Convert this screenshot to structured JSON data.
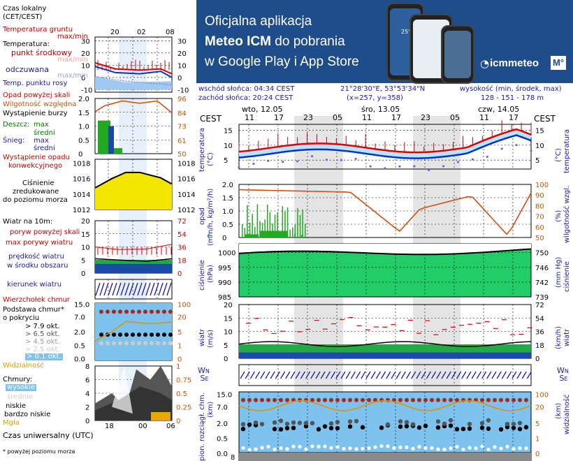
{
  "banner": {
    "line1": "Oficjalna aplikacja",
    "line2_bold": "Meteo ICM",
    "line2_rest": " do pobrania",
    "line3": "w Google Play i App Store",
    "logo_text": "icmmeteo",
    "logo_m": "M°",
    "phone_temp": "25°"
  },
  "info": {
    "sunrise": "wschód słońca: 04:34 CEST",
    "sunset": "zachód słońca: 20:24 CEST",
    "coords": "21°28'30\"E, 53°53'34\"N",
    "grid": "(x=257, y=358)",
    "elevation_label": "wysokość (min, środek, max)",
    "elevation_values": "128 - 151 - 178 m"
  },
  "legend": {
    "local_time": "Czas lokalny",
    "local_time_zone": "(CET/CEST)",
    "local_ticks": [
      "20",
      "02",
      "08"
    ],
    "ground_temp": "Temperatura gruntu",
    "ground_temp_sub": "max/min",
    "temperature": "Temperatura:",
    "midpoint": "punkt środkowy",
    "midpoint_sub": "max/min",
    "feels_like": "odczuwana",
    "feels_sub": "max/min",
    "dew_point": "Temp. punktu rosy",
    "precip_above": "Opad powyżej skali",
    "humidity": "Wilgotność względna",
    "storm": "Wystąpienie burzy",
    "rain": "Deszcz:",
    "rain_max": "max",
    "rain_avg": "średni",
    "snow": "Śnieg:",
    "snow_max": "max",
    "snow_avg": "średni",
    "conv_precip_1": "Wystąpienie opadu",
    "conv_precip_2": "konwekcyjnego",
    "pressure_1": "Ciśnienie",
    "pressure_2": "zredukowane",
    "pressure_3": "do poziomu morza",
    "wind_10m": "Wiatr na 10m:",
    "gusts_above": "poryw powyżej skali",
    "max_gust": "max porywy wiatru",
    "wind_speed": "prędkość wiatru",
    "wind_area": "w środku obszaru",
    "wind_dir": "kierunek wiatru",
    "cloud_top": "Wierzchołek chmur",
    "cloud_base_1": "Podstawa chmur*",
    "cloud_base_2": "o pokryciu",
    "okt": [
      "> 7.9 okt.",
      "> 6.5 okt.",
      "> 4.5 okt.",
      "> 2.5 okt.",
      "> 0.1 okt."
    ],
    "visibility": "Widzialność",
    "clouds": "Chmury:",
    "cl_high": "wysokie",
    "cl_mid": "średnie",
    "cl_low": "niskie",
    "cl_vlow": "bardzo niskie",
    "fog": "Mgła",
    "utc": "Czas uniwersalny (UTC)",
    "utc_ticks": [
      "18",
      "00",
      "06"
    ],
    "footnote": "* powyżej poziomu morza",
    "left_ticks": {
      "temp": [
        "30",
        "20",
        "10",
        "0",
        "-10"
      ],
      "temp_r": [
        "30",
        "20",
        "10",
        "0",
        "-10"
      ],
      "precip": [
        "2.0",
        "1.5",
        "1.0",
        "0.5",
        "0"
      ],
      "humid": [
        "96",
        "84",
        "73",
        "61",
        "50"
      ],
      "press": [
        "1018",
        "1016",
        "1014",
        "1012"
      ],
      "wind": [
        "20",
        "15",
        "10",
        "5",
        "0"
      ],
      "wind_kmh": [
        "72",
        "54",
        "36",
        "18",
        "0"
      ],
      "cloud": [
        "15.0",
        "7.0",
        "2.0",
        "0.5",
        "0.0"
      ],
      "cloud_r": [
        "100",
        "20",
        "5",
        "1",
        "0"
      ],
      "cov": [
        "8",
        "6",
        "4",
        "2",
        "0"
      ],
      "cov_r": [
        "1",
        "0.75",
        "0.5",
        "0.25",
        "0"
      ]
    }
  },
  "forecast": {
    "cest_label": "CEST",
    "days": [
      "wto, 12.05",
      "śro, 13.05",
      "czw, 14.05"
    ],
    "hours": [
      "11",
      "17",
      "23",
      "05",
      "11",
      "17",
      "23",
      "05",
      "11",
      "17"
    ],
    "temp_label": "temperatura",
    "temp_unit": "(°C)",
    "temp_ticks": [
      "15",
      "10",
      "5"
    ],
    "precip_label": "opad",
    "precip_unit": "(mm/h, kg/m²/h)",
    "humid_label": "wilgotność wzgl.",
    "humid_unit": "(%)",
    "precip_ticks": [
      "2.0",
      "1.5",
      "1.0",
      "0.5",
      "0"
    ],
    "humid_ticks": [
      "100",
      "90",
      "80",
      "70",
      "60",
      "50"
    ],
    "press_label": "ciśnienie",
    "press_unit": "(hPa)",
    "press_unit_r": "(mm Hg)",
    "press_ticks": [
      "1000",
      "995",
      "990",
      "985"
    ],
    "press_ticks_r": [
      "750",
      "746",
      "742",
      "739"
    ],
    "wind_label": "wiatr",
    "wind_unit": "(m/s)",
    "wind_unit_r": "(km/h)",
    "wind_ticks": [
      "20",
      "15",
      "10",
      "5",
      "0"
    ],
    "wind_ticks_r": [
      "72",
      "54",
      "36",
      "18",
      "0"
    ],
    "cloud_label": "pion. rozciągł. chm.",
    "cloud_unit": "(km)",
    "vis_label": "widzialność",
    "vis_unit": "(km)",
    "cloud_ticks": [
      "15.0",
      "7.0",
      "2.0",
      "0.5",
      "0.0"
    ],
    "vis_ticks": [
      "100",
      "20",
      "5",
      "1",
      "0"
    ],
    "bottom_tick": "8"
  },
  "colors": {
    "banner_bg": "#1f4d89",
    "temp_red": "#dd0000",
    "temp_blue": "#0033cc",
    "humidity_orange": "#d05010",
    "precip_green": "#22aa22",
    "pressure_green": "#22cc66",
    "pressure_yellow": "#f2e600",
    "wind_blue": "#1a4aa8",
    "cloud_bg": "#7ec3ee",
    "night_shade": "#e4e4e4"
  }
}
